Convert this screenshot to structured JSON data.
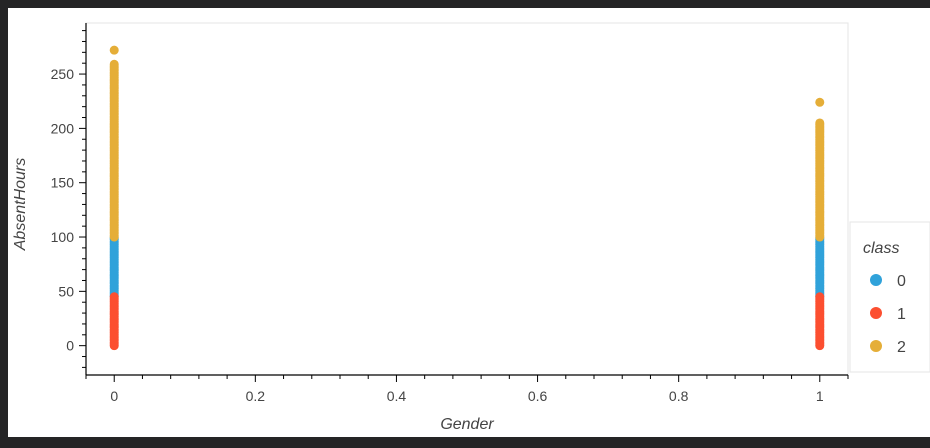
{
  "chart_data": {
    "type": "scatter",
    "xlabel": "Gender",
    "ylabel": "AbsentHours",
    "xlim": [
      -0.04,
      1.04
    ],
    "ylim": [
      -27,
      297
    ],
    "x_ticks": [
      0,
      0.2,
      0.4,
      0.6,
      0.8,
      1
    ],
    "y_ticks": [
      0,
      50,
      100,
      150,
      200,
      250
    ],
    "legend": {
      "title": "class",
      "placement": "right",
      "entries": [
        {
          "label": "0",
          "color": "#30a2da"
        },
        {
          "label": "1",
          "color": "#fc4f30"
        },
        {
          "label": "2",
          "color": "#e5ae38"
        }
      ]
    },
    "series": [
      {
        "name": "0",
        "color": "#30a2da",
        "x": [
          0,
          1
        ],
        "y_range": [
          [
            45,
            100
          ],
          [
            45,
            100
          ]
        ]
      },
      {
        "name": "1",
        "color": "#fc4f30",
        "x": [
          0,
          1
        ],
        "y_range": [
          [
            0,
            45
          ],
          [
            0,
            45
          ]
        ]
      },
      {
        "name": "2",
        "color": "#e5ae38",
        "x": [
          0,
          1
        ],
        "y_range": [
          [
            100,
            260
          ],
          [
            100,
            205
          ]
        ],
        "outliers": [
          {
            "x": 0,
            "y": 272
          },
          {
            "x": 1,
            "y": 224
          }
        ]
      }
    ]
  }
}
